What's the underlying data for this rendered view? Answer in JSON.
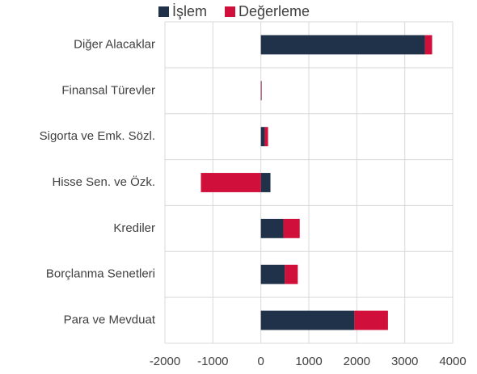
{
  "chart_data": {
    "type": "stacked-barh",
    "categories": [
      "Diğer Alacaklar",
      "Finansal Türevler",
      "Sigorta ve Emk. Sözl.",
      "Hisse Sen. ve Özk.",
      "Krediler",
      "Borçlanma Senetleri",
      "Para ve Mevduat"
    ],
    "series": [
      {
        "name": "İşlem",
        "color": "#1f3249",
        "values": [
          3420,
          10,
          80,
          200,
          470,
          500,
          1950
        ]
      },
      {
        "name": "Değerleme",
        "color": "#d0103a",
        "values": [
          150,
          0,
          70,
          -1250,
          340,
          270,
          700
        ]
      }
    ],
    "xlim": [
      -2000,
      4000
    ],
    "xticks": [
      -2000,
      -1000,
      0,
      1000,
      2000,
      3000,
      4000
    ],
    "grid": true,
    "legend": "top"
  }
}
